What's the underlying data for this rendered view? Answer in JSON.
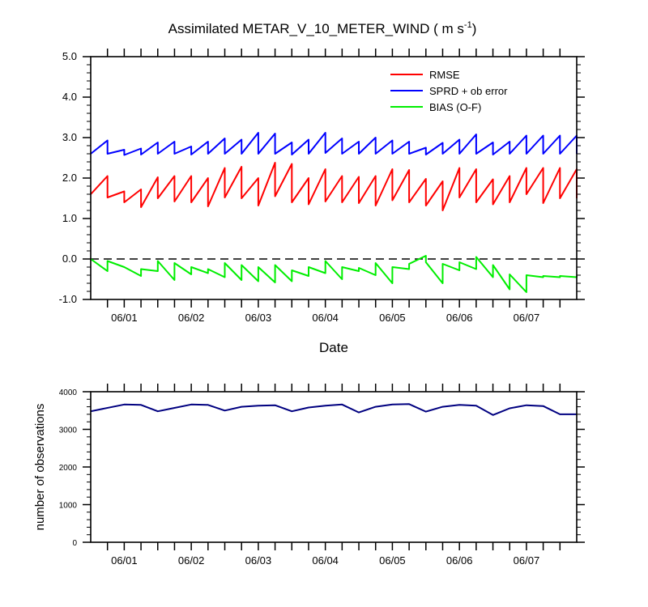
{
  "chart_data": [
    {
      "type": "line",
      "title": "Assimilated METAR_V_10_METER_WIND ( m s",
      "title_units_sup": "-1",
      "title_close": ")",
      "xlabel": "Date",
      "ylabel": "",
      "ylim": [
        -1.0,
        5.0
      ],
      "yticks": [
        "5.0",
        "4.0",
        "3.0",
        "2.0",
        "1.0",
        "0.0",
        "-1.0"
      ],
      "xticks": [
        "06/01",
        "06/02",
        "06/03",
        "06/04",
        "06/05",
        "06/06",
        "06/07"
      ],
      "zero_line": true,
      "legend_position": "top-right",
      "x": [
        0.0,
        0.25,
        0.25,
        0.5,
        0.5,
        0.75,
        0.75,
        1.0,
        1.0,
        1.25,
        1.25,
        1.5,
        1.5,
        1.75,
        1.75,
        2.0,
        2.0,
        2.25,
        2.25,
        2.5,
        2.5,
        2.75,
        2.75,
        3.0,
        3.0,
        3.25,
        3.25,
        3.5,
        3.5,
        3.75,
        3.75,
        4.0,
        4.0,
        4.25,
        4.25,
        4.5,
        4.5,
        4.75,
        4.75,
        5.0,
        5.0,
        5.25,
        5.25,
        5.5,
        5.5,
        5.75,
        5.75,
        6.0,
        6.0,
        6.25,
        6.25,
        6.5,
        6.5,
        6.75,
        6.75,
        7.0,
        7.0,
        7.25,
        7.25
      ],
      "x_range": [
        0,
        7.25
      ],
      "series": [
        {
          "name": "RMSE",
          "color": "#ff0000",
          "values": [
            1.6,
            2.05,
            1.52,
            1.67,
            1.4,
            1.72,
            1.28,
            2.02,
            1.5,
            2.05,
            1.42,
            2.05,
            1.4,
            2.0,
            1.3,
            2.25,
            1.52,
            2.28,
            1.5,
            2.0,
            1.32,
            2.38,
            1.55,
            2.35,
            1.4,
            2.0,
            1.35,
            2.22,
            1.42,
            2.05,
            1.4,
            2.03,
            1.38,
            2.05,
            1.32,
            2.22,
            1.45,
            2.2,
            1.4,
            1.98,
            1.32,
            1.92,
            1.2,
            2.25,
            1.52,
            2.22,
            1.4,
            1.97,
            1.35,
            2.05,
            1.4,
            2.25,
            1.6,
            2.25,
            1.38,
            2.25,
            1.5,
            2.22,
            1.5
          ]
        },
        {
          "name": "SPRD + ob error",
          "color": "#0000ff",
          "values": [
            2.6,
            2.93,
            2.6,
            2.7,
            2.57,
            2.73,
            2.58,
            2.88,
            2.6,
            2.9,
            2.6,
            2.78,
            2.58,
            2.9,
            2.6,
            2.98,
            2.6,
            2.95,
            2.6,
            3.12,
            2.6,
            3.1,
            2.6,
            2.88,
            2.58,
            2.95,
            2.6,
            3.12,
            2.62,
            2.98,
            2.6,
            2.9,
            2.6,
            3.0,
            2.6,
            2.93,
            2.6,
            2.9,
            2.6,
            2.75,
            2.58,
            2.87,
            2.6,
            2.95,
            2.6,
            3.08,
            2.6,
            2.88,
            2.58,
            2.9,
            2.6,
            3.05,
            2.6,
            3.05,
            2.6,
            3.05,
            2.6,
            3.05,
            2.6
          ]
        },
        {
          "name": "BIAS (O-F)",
          "color": "#00ee00",
          "values": [
            0.0,
            -0.3,
            -0.05,
            -0.2,
            -0.2,
            -0.42,
            -0.25,
            -0.3,
            -0.05,
            -0.52,
            -0.1,
            -0.38,
            -0.2,
            -0.35,
            -0.25,
            -0.45,
            -0.1,
            -0.52,
            -0.15,
            -0.55,
            -0.2,
            -0.58,
            -0.15,
            -0.55,
            -0.28,
            -0.42,
            -0.2,
            -0.35,
            -0.05,
            -0.5,
            -0.2,
            -0.3,
            -0.22,
            -0.4,
            -0.1,
            -0.6,
            -0.2,
            -0.25,
            -0.12,
            0.08,
            -0.08,
            -0.6,
            -0.12,
            -0.28,
            -0.08,
            -0.25,
            0.05,
            -0.45,
            -0.15,
            -0.75,
            -0.38,
            -0.82,
            -0.4,
            -0.45,
            -0.42,
            -0.45,
            -0.42,
            -0.45,
            -0.42
          ]
        }
      ]
    },
    {
      "type": "line",
      "title": "",
      "xlabel": "",
      "ylabel": "number of observations",
      "ylim": [
        0,
        4000
      ],
      "yticks": [
        "4000",
        "3000",
        "2000",
        "1000",
        "0"
      ],
      "xticks": [
        "06/01",
        "06/02",
        "06/03",
        "06/04",
        "06/05",
        "06/06",
        "06/07"
      ],
      "x": [
        0.0,
        0.5,
        0.75,
        1.0,
        1.25,
        1.5,
        1.75,
        2.0,
        2.25,
        2.5,
        2.75,
        3.0,
        3.25,
        3.5,
        3.75,
        4.0,
        4.25,
        4.5,
        4.75,
        5.0,
        5.25,
        5.5,
        5.75,
        6.0,
        6.25,
        6.5,
        6.75,
        7.0,
        7.25
      ],
      "x_range": [
        0,
        7.25
      ],
      "series": [
        {
          "name": "",
          "color": "#000080",
          "values": [
            3480,
            3660,
            3650,
            3480,
            3570,
            3660,
            3650,
            3500,
            3600,
            3630,
            3640,
            3480,
            3580,
            3630,
            3660,
            3450,
            3600,
            3660,
            3670,
            3470,
            3600,
            3650,
            3630,
            3380,
            3560,
            3640,
            3620,
            3400,
            3400
          ]
        }
      ]
    }
  ]
}
